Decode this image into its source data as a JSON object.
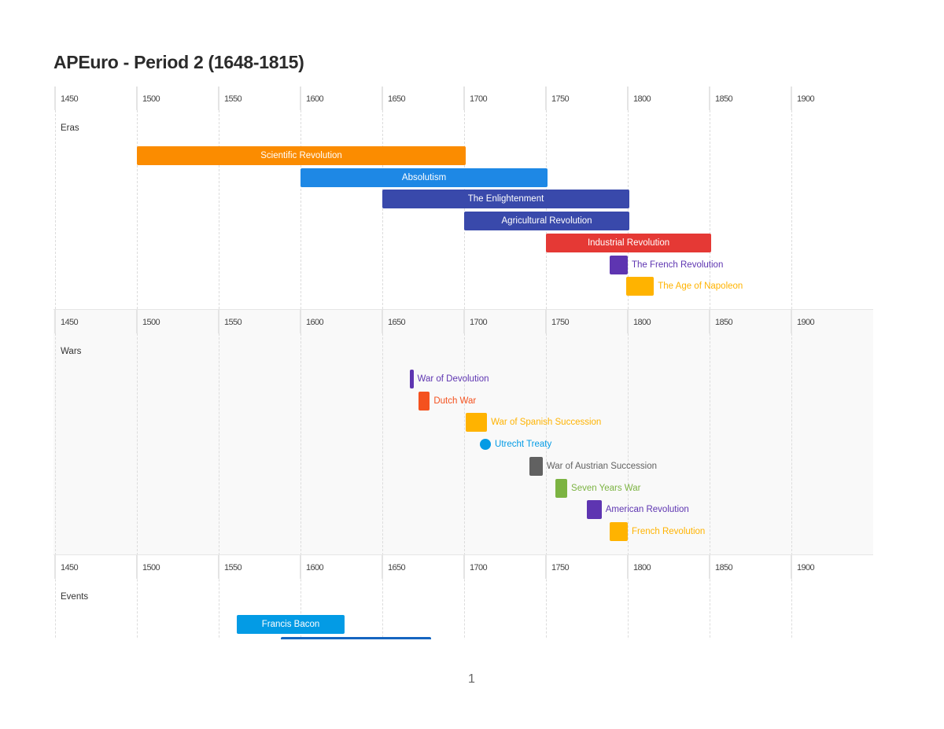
{
  "title": "APEuro - Period 2 (1648-1815)",
  "page_number": "1",
  "chart_data": {
    "type": "timeline",
    "x_ticks": [
      "1450",
      "1500",
      "1550",
      "1600",
      "1650",
      "1700",
      "1750",
      "1800",
      "1850",
      "1900"
    ],
    "xlim": [
      1450,
      1950
    ],
    "grid": true,
    "sections": [
      {
        "label": "Eras",
        "background": "#ffffff",
        "items": [
          {
            "label": "Scientific Revolution",
            "start": 1500,
            "end": 1701,
            "color": "#FB8C00",
            "label_position": "inside"
          },
          {
            "label": "Absolutism",
            "start": 1600,
            "end": 1751,
            "color": "#1E88E5",
            "label_position": "inside"
          },
          {
            "label": "The Enlightenment",
            "start": 1650,
            "end": 1801,
            "color": "#3949AB",
            "label_position": "inside"
          },
          {
            "label": "Agricultural Revolution",
            "start": 1700,
            "end": 1801,
            "color": "#3949AB",
            "label_position": "inside"
          },
          {
            "label": "Industrial Revolution",
            "start": 1750,
            "end": 1851,
            "color": "#E53935",
            "label_position": "inside"
          },
          {
            "label": "The French Revolution",
            "start": 1789,
            "end": 1800,
            "color": "#5E35B1",
            "label_position": "outside"
          },
          {
            "label": "The Age of Napoleon",
            "start": 1799,
            "end": 1816,
            "color": "#FFB300",
            "label_position": "outside"
          }
        ]
      },
      {
        "label": "Wars",
        "background": "#f9f9f9",
        "items": [
          {
            "label": "War of Devolution",
            "start": 1667,
            "end": 1669,
            "color": "#5E35B1",
            "label_position": "outside"
          },
          {
            "label": "Dutch War",
            "start": 1672,
            "end": 1679,
            "color": "#F4511E",
            "label_position": "outside"
          },
          {
            "label": "War of Spanish Succession",
            "start": 1701,
            "end": 1714,
            "color": "#FFB300",
            "label_position": "outside"
          },
          {
            "label": "Utrecht Treaty",
            "start": 1713,
            "end": 1713,
            "color": "#039BE5",
            "label_position": "outside",
            "point": true
          },
          {
            "label": "War of Austrian Succession",
            "start": 1740,
            "end": 1748,
            "color": "#616161",
            "label_position": "outside"
          },
          {
            "label": "Seven Years War",
            "start": 1756,
            "end": 1763,
            "color": "#7CB342",
            "label_position": "outside"
          },
          {
            "label": "American Revolution",
            "start": 1775,
            "end": 1784,
            "color": "#5E35B1",
            "label_position": "outside"
          },
          {
            "label": "French Revolution",
            "start": 1789,
            "end": 1800,
            "color": "#FFB300",
            "label_position": "outside"
          }
        ]
      },
      {
        "label": "Events",
        "background": "#ffffff",
        "items": [
          {
            "label": "Francis Bacon",
            "start": 1561,
            "end": 1627,
            "color": "#039BE5",
            "label_position": "inside"
          },
          {
            "label": "",
            "start": 1588,
            "end": 1680,
            "color": "#1565C0",
            "label_position": "inside"
          }
        ]
      }
    ]
  }
}
